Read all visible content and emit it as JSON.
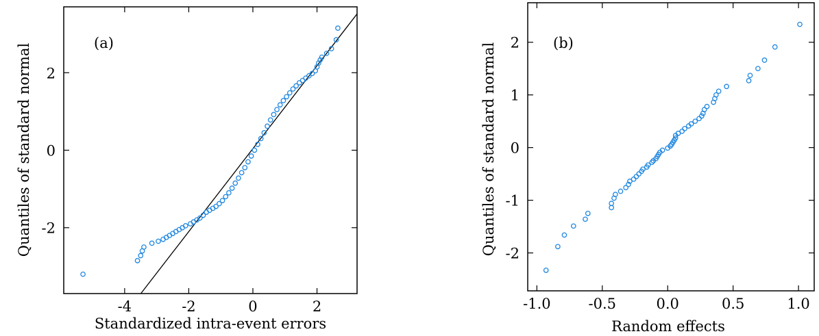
{
  "chart_data": [
    {
      "type": "scatter",
      "panel_label": "(a)",
      "xlabel": "Standardized intra-event errors",
      "ylabel": "Quantiles of standard normal",
      "xlim": [
        -5.9,
        3.25
      ],
      "ylim": [
        -3.7,
        3.7
      ],
      "xticks": [
        -4,
        -2,
        0,
        2
      ],
      "xtick_labels": [
        "-4",
        "-2",
        "0",
        "2"
      ],
      "yticks": [
        -2,
        0,
        2
      ],
      "ytick_labels": [
        "-2",
        "0",
        "2"
      ],
      "grid": false,
      "marker_color": "#1f87e0",
      "reference_line": {
        "slope": 1.07,
        "intercept": 0.04
      },
      "points": [
        [
          -5.3,
          -3.2
        ],
        [
          -3.6,
          -2.85
        ],
        [
          -3.5,
          -2.72
        ],
        [
          -3.45,
          -2.6
        ],
        [
          -3.4,
          -2.5
        ],
        [
          -3.15,
          -2.4
        ],
        [
          -2.95,
          -2.35
        ],
        [
          -2.8,
          -2.3
        ],
        [
          -2.7,
          -2.25
        ],
        [
          -2.6,
          -2.2
        ],
        [
          -2.5,
          -2.15
        ],
        [
          -2.4,
          -2.1
        ],
        [
          -2.3,
          -2.05
        ],
        [
          -2.2,
          -2.0
        ],
        [
          -2.1,
          -1.95
        ],
        [
          -1.95,
          -1.9
        ],
        [
          -1.85,
          -1.85
        ],
        [
          -1.75,
          -1.8
        ],
        [
          -1.65,
          -1.75
        ],
        [
          -1.55,
          -1.68
        ],
        [
          -1.45,
          -1.6
        ],
        [
          -1.35,
          -1.55
        ],
        [
          -1.25,
          -1.5
        ],
        [
          -1.15,
          -1.45
        ],
        [
          -1.05,
          -1.38
        ],
        [
          -0.95,
          -1.3
        ],
        [
          -0.85,
          -1.2
        ],
        [
          -0.75,
          -1.1
        ],
        [
          -0.65,
          -0.98
        ],
        [
          -0.55,
          -0.85
        ],
        [
          -0.45,
          -0.72
        ],
        [
          -0.35,
          -0.58
        ],
        [
          -0.25,
          -0.45
        ],
        [
          -0.15,
          -0.3
        ],
        [
          -0.05,
          -0.15
        ],
        [
          0.05,
          0.0
        ],
        [
          0.15,
          0.15
        ],
        [
          0.25,
          0.3
        ],
        [
          0.35,
          0.45
        ],
        [
          0.45,
          0.62
        ],
        [
          0.55,
          0.78
        ],
        [
          0.65,
          0.92
        ],
        [
          0.75,
          1.05
        ],
        [
          0.85,
          1.17
        ],
        [
          0.95,
          1.28
        ],
        [
          1.05,
          1.38
        ],
        [
          1.15,
          1.48
        ],
        [
          1.25,
          1.58
        ],
        [
          1.35,
          1.66
        ],
        [
          1.45,
          1.74
        ],
        [
          1.55,
          1.8
        ],
        [
          1.65,
          1.86
        ],
        [
          1.75,
          1.92
        ],
        [
          1.85,
          1.98
        ],
        [
          1.95,
          2.05
        ],
        [
          2.0,
          2.15
        ],
        [
          2.05,
          2.25
        ],
        [
          2.1,
          2.33
        ],
        [
          2.15,
          2.4
        ],
        [
          2.3,
          2.5
        ],
        [
          2.45,
          2.62
        ],
        [
          2.6,
          2.85
        ],
        [
          2.65,
          3.15
        ]
      ]
    },
    {
      "type": "scatter",
      "panel_label": "(b)",
      "xlabel": "Random effects",
      "ylabel": "Quantiles of standard normal",
      "xlim": [
        -1.07,
        1.12
      ],
      "ylim": [
        -2.72,
        2.75
      ],
      "xticks": [
        -1.0,
        -0.5,
        0.0,
        0.5,
        1.0
      ],
      "xtick_labels": [
        "-1.0",
        "-0.5",
        "0.0",
        "0.5",
        "1.0"
      ],
      "yticks": [
        -2,
        -1,
        0,
        1,
        2
      ],
      "ytick_labels": [
        "-2",
        "-1",
        "0",
        "1",
        "2"
      ],
      "grid": false,
      "marker_color": "#1f87e0",
      "points": [
        [
          -0.93,
          -2.33
        ],
        [
          -0.84,
          -1.88
        ],
        [
          -0.79,
          -1.66
        ],
        [
          -0.72,
          -1.49
        ],
        [
          -0.63,
          -1.36
        ],
        [
          -0.61,
          -1.25
        ],
        [
          -0.43,
          -1.14
        ],
        [
          -0.43,
          -1.06
        ],
        [
          -0.41,
          -0.96
        ],
        [
          -0.4,
          -0.89
        ],
        [
          -0.36,
          -0.83
        ],
        [
          -0.32,
          -0.76
        ],
        [
          -0.3,
          -0.7
        ],
        [
          -0.29,
          -0.64
        ],
        [
          -0.26,
          -0.6
        ],
        [
          -0.24,
          -0.55
        ],
        [
          -0.22,
          -0.5
        ],
        [
          -0.2,
          -0.45
        ],
        [
          -0.19,
          -0.41
        ],
        [
          -0.16,
          -0.37
        ],
        [
          -0.15,
          -0.33
        ],
        [
          -0.12,
          -0.28
        ],
        [
          -0.11,
          -0.25
        ],
        [
          -0.09,
          -0.21
        ],
        [
          -0.08,
          -0.17
        ],
        [
          -0.07,
          -0.13
        ],
        [
          -0.06,
          -0.09
        ],
        [
          -0.04,
          -0.05
        ],
        [
          0.0,
          -0.01
        ],
        [
          0.02,
          0.03
        ],
        [
          0.03,
          0.06
        ],
        [
          0.04,
          0.1
        ],
        [
          0.05,
          0.14
        ],
        [
          0.06,
          0.18
        ],
        [
          0.06,
          0.23
        ],
        [
          0.08,
          0.27
        ],
        [
          0.11,
          0.31
        ],
        [
          0.13,
          0.36
        ],
        [
          0.16,
          0.41
        ],
        [
          0.18,
          0.45
        ],
        [
          0.21,
          0.5
        ],
        [
          0.24,
          0.55
        ],
        [
          0.26,
          0.6
        ],
        [
          0.27,
          0.65
        ],
        [
          0.28,
          0.72
        ],
        [
          0.3,
          0.78
        ],
        [
          0.35,
          0.86
        ],
        [
          0.36,
          0.93
        ],
        [
          0.37,
          1.0
        ],
        [
          0.39,
          1.07
        ],
        [
          0.45,
          1.16
        ],
        [
          0.62,
          1.27
        ],
        [
          0.63,
          1.37
        ],
        [
          0.69,
          1.5
        ],
        [
          0.74,
          1.66
        ],
        [
          0.82,
          1.91
        ],
        [
          1.01,
          2.34
        ]
      ]
    }
  ]
}
